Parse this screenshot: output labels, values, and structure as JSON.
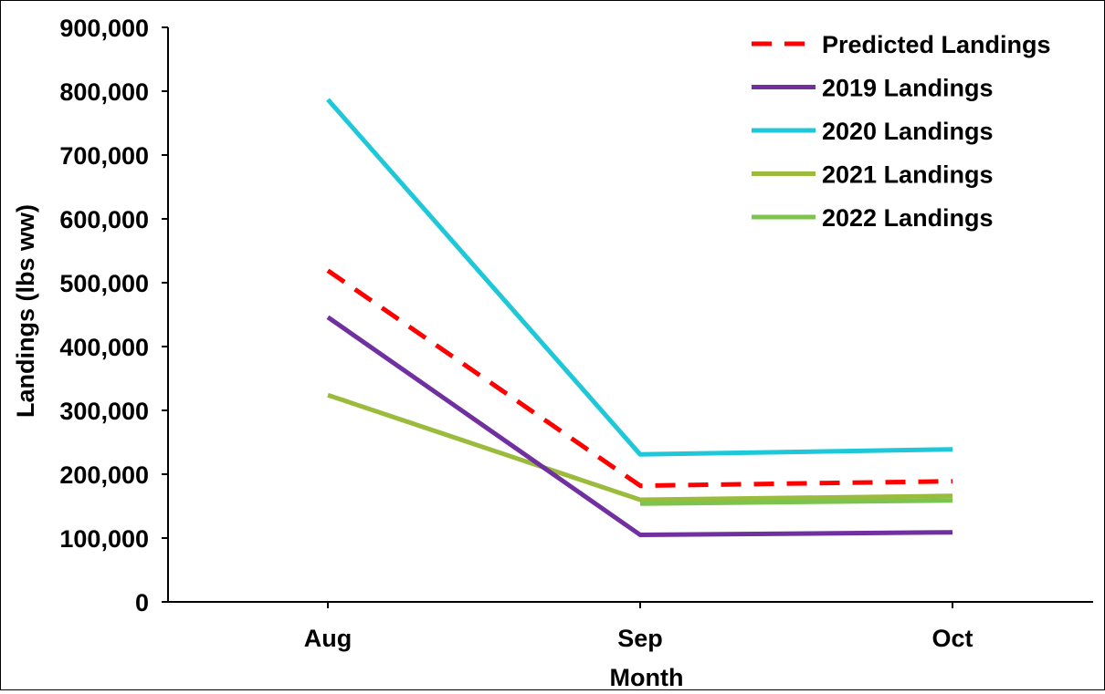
{
  "chart_data": {
    "type": "line",
    "title": "",
    "xlabel": "Month",
    "ylabel": "Landings (lbs ww)",
    "categories": [
      "Aug",
      "Sep",
      "Oct"
    ],
    "ylim": [
      0,
      900000
    ],
    "yticks": [
      0,
      100000,
      200000,
      300000,
      400000,
      500000,
      600000,
      700000,
      800000,
      900000
    ],
    "ytick_labels": [
      "0",
      "100,000",
      "200,000",
      "300,000",
      "400,000",
      "500,000",
      "600,000",
      "700,000",
      "800,000",
      "900,000"
    ],
    "grid": false,
    "legend_position": "top-right",
    "series": [
      {
        "name": "Predicted Landings",
        "values": [
          519000,
          182000,
          189000
        ],
        "color": "#ff0000",
        "dashed": true
      },
      {
        "name": "2019 Landings",
        "values": [
          446000,
          105000,
          109000
        ],
        "color": "#7030a0",
        "dashed": false
      },
      {
        "name": "2020 Landings",
        "values": [
          787000,
          231000,
          239000
        ],
        "color": "#1fc8d8",
        "dashed": false
      },
      {
        "name": "2021 Landings",
        "values": [
          324000,
          160000,
          166000
        ],
        "color": "#9bbb3c",
        "dashed": false
      },
      {
        "name": "2022 Landings",
        "values": null,
        "values_sep_oct": [
          154000,
          159000
        ],
        "color": "#7dc44e",
        "dashed": false
      }
    ]
  }
}
